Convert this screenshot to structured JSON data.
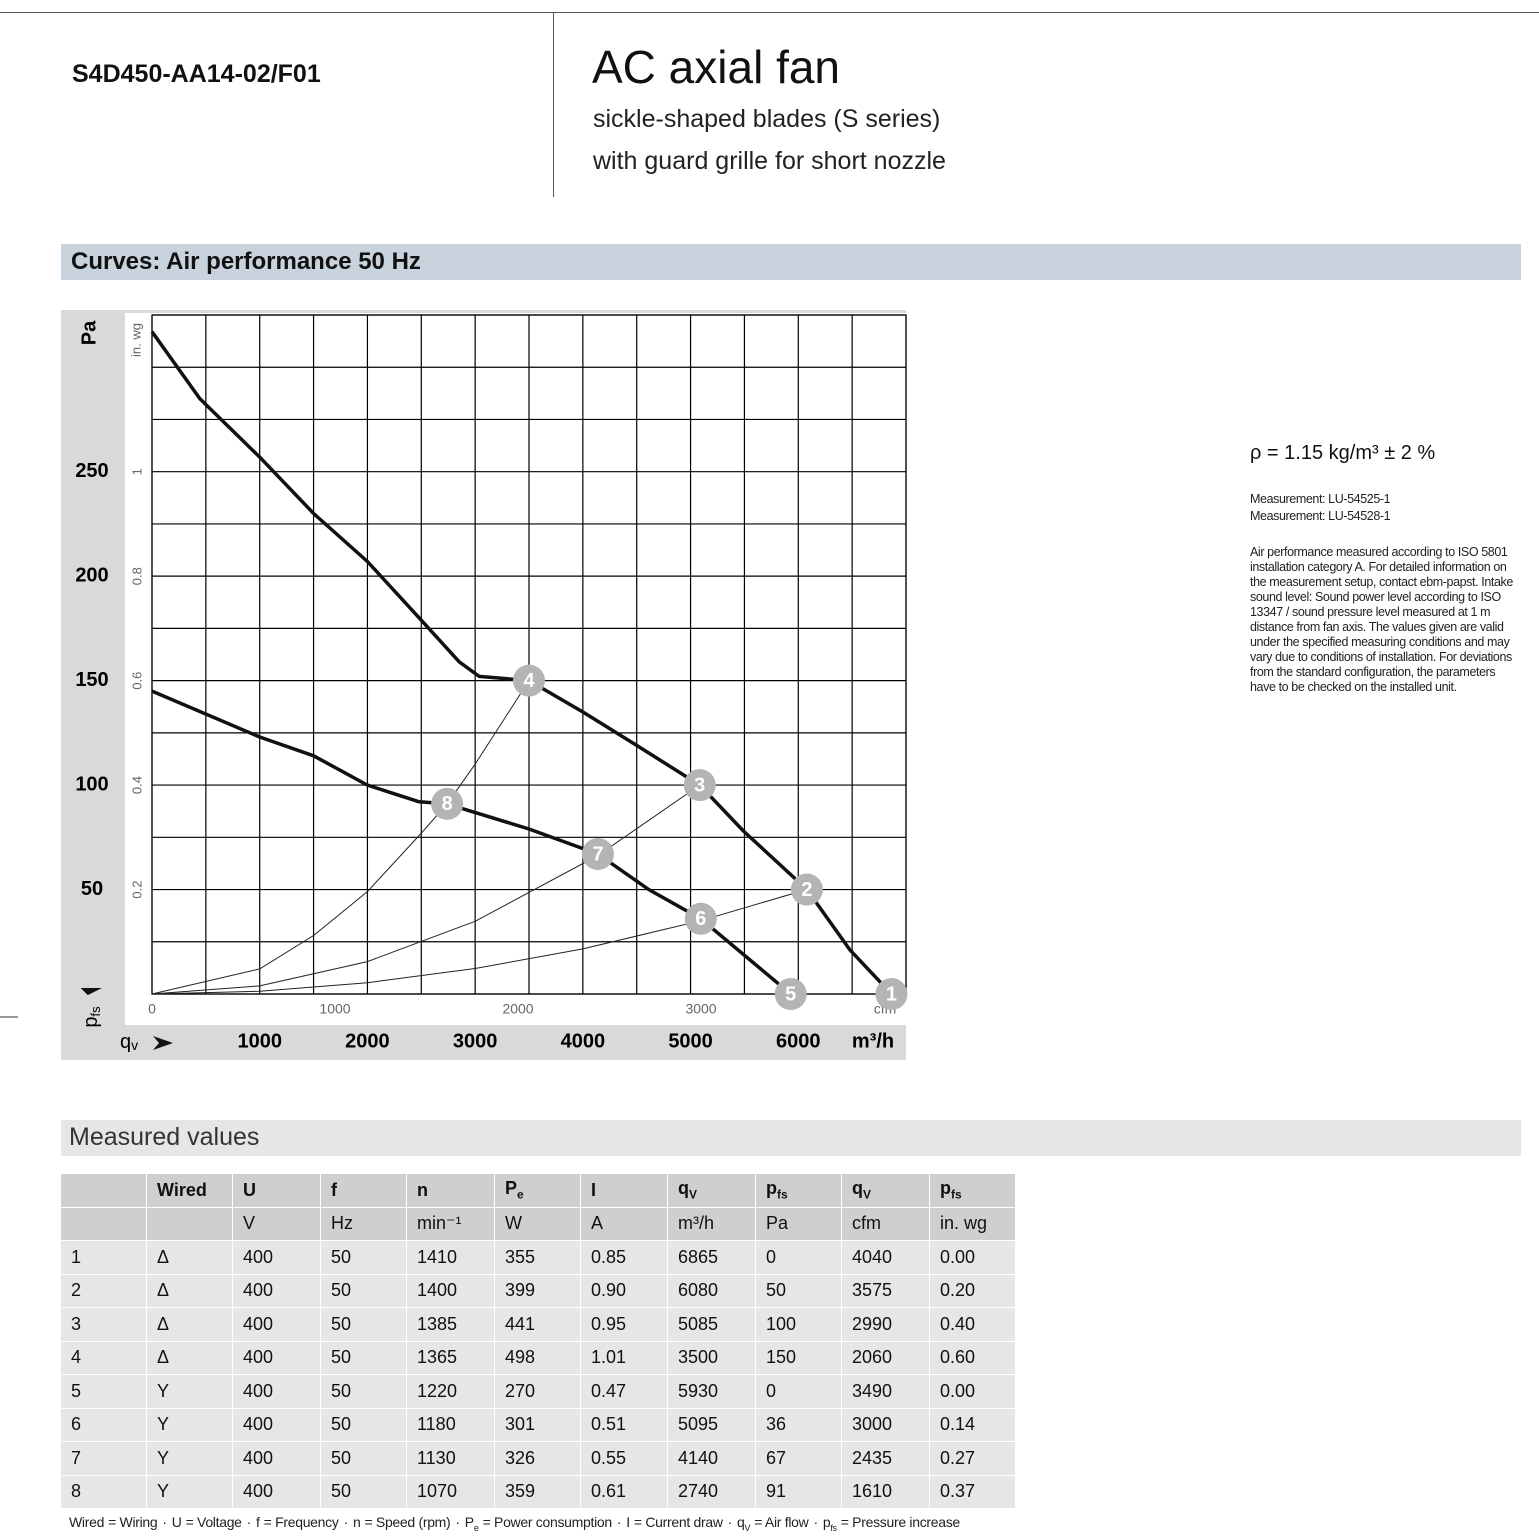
{
  "header": {
    "model": "S4D450-AA14-02/F01",
    "title": "AC axial fan",
    "subtitle": [
      "sickle-shaped blades (S series)",
      "with guard grille for short nozzle"
    ]
  },
  "curves_section": {
    "title": "Curves: Air performance 50 Hz"
  },
  "notes": {
    "density": "ρ = 1.15 kg/m³ ± 2 %",
    "measurements": [
      "Measurement: LU-54525-1",
      "Measurement: LU-54528-1"
    ],
    "description": "Air performance measured according to ISO 5801 installation category A. For detailed information on the measurement setup, contact ebm-papst. Intake sound level: Sound power level according to ISO 13347 / sound pressure level measured at 1 m distance from fan axis. The values given are valid under the specified measuring conditions and may vary due to conditions of installation. For deviations from the standard configuration, the parameters have to be checked on the installed unit."
  },
  "chart_data": {
    "type": "line",
    "ylabel": {
      "symbol": "p",
      "sub": "fs"
    },
    "ylabel_unit": "Pa",
    "y2label_unit": "in. wg",
    "xlabel": {
      "symbol": "q",
      "sub": "v"
    },
    "xlabel_unit": "m³/h",
    "x2label_unit": "cfm",
    "xlim": [
      0,
      7000
    ],
    "ylim": [
      0,
      325
    ],
    "x2lim": [
      0,
      4120
    ],
    "y2lim": [
      0,
      1.3
    ],
    "xticks": [
      1000,
      2000,
      3000,
      4000,
      5000,
      6000
    ],
    "yticks": [
      50,
      100,
      150,
      200,
      250
    ],
    "x2ticks": [
      0,
      1000,
      2000,
      3000
    ],
    "y2ticks": [
      0.2,
      0.4,
      0.6,
      0.8,
      1
    ],
    "xgrid": [
      0,
      500,
      1000,
      1500,
      2000,
      2500,
      3000,
      3500,
      4000,
      4500,
      5000,
      5500,
      6000,
      6500,
      7000
    ],
    "ygrid": [
      0,
      25,
      50,
      75,
      100,
      125,
      150,
      175,
      200,
      225,
      250,
      275,
      300,
      325
    ],
    "series": [
      {
        "color": "#111111",
        "line_width": 3.5,
        "x": [
          0,
          444,
          1000,
          1500,
          2000,
          2481,
          2852,
          3037,
          3500,
          4000,
          4500,
          5085,
          5490,
          6080,
          6481,
          6865
        ],
        "values": [
          317,
          285,
          257,
          230,
          207,
          180,
          159,
          152,
          150,
          135,
          119,
          100,
          78,
          50,
          21,
          0
        ]
      },
      {
        "color": "#111111",
        "line_width": 3.5,
        "x": [
          0,
          1000,
          1500,
          2000,
          2481,
          2740,
          3500,
          4140,
          4611,
          5095,
          5930
        ],
        "values": [
          145,
          123,
          114,
          100,
          92,
          91,
          79,
          67,
          50,
          36,
          0
        ]
      },
      {
        "color": "#222222",
        "line_width": 1,
        "x": [
          0,
          1000,
          1500,
          2000,
          2500,
          2740,
          3000,
          3500
        ],
        "values": [
          0,
          12,
          28,
          49,
          77,
          91,
          110,
          150
        ]
      },
      {
        "color": "#222222",
        "line_width": 1,
        "x": [
          0,
          1000,
          2000,
          3000,
          4140,
          5085
        ],
        "values": [
          0,
          3.9,
          15.5,
          34.8,
          66.3,
          100
        ]
      },
      {
        "color": "#222222",
        "line_width": 1,
        "x": [
          0,
          1000,
          2000,
          3000,
          4000,
          5095,
          6080
        ],
        "values": [
          0,
          1.35,
          5.4,
          12.2,
          21.6,
          35.1,
          50
        ]
      }
    ],
    "markers": [
      {
        "label": "1",
        "x": 6865,
        "y": 0
      },
      {
        "label": "2",
        "x": 6080,
        "y": 50
      },
      {
        "label": "3",
        "x": 5085,
        "y": 100
      },
      {
        "label": "4",
        "x": 3500,
        "y": 150
      },
      {
        "label": "5",
        "x": 5930,
        "y": 0
      },
      {
        "label": "6",
        "x": 5095,
        "y": 36
      },
      {
        "label": "7",
        "x": 4140,
        "y": 67
      },
      {
        "label": "8",
        "x": 2740,
        "y": 91
      }
    ],
    "marker_color": "#b4b4b4"
  },
  "measured_section": {
    "title": "Measured values"
  },
  "table": {
    "columns": [
      {
        "symbol": "Wired"
      },
      {
        "symbol": "U",
        "unit": "V"
      },
      {
        "symbol": "f",
        "unit": "Hz"
      },
      {
        "symbol": "n",
        "unit": "min⁻¹"
      },
      {
        "symbol": "P",
        "sub": "e",
        "unit": "W"
      },
      {
        "symbol": "I",
        "unit": "A"
      },
      {
        "symbol": "q",
        "sub": "V",
        "unit": "m³/h"
      },
      {
        "symbol": "p",
        "sub": "fs",
        "unit": "Pa"
      },
      {
        "symbol": "q",
        "sub": "V",
        "unit": "cfm"
      },
      {
        "symbol": "p",
        "sub": "fs",
        "unit": "in. wg"
      }
    ],
    "rows": [
      [
        "1",
        "Δ",
        "400",
        "50",
        "1410",
        "355",
        "0.85",
        "6865",
        "0",
        "4040",
        "0.00"
      ],
      [
        "2",
        "Δ",
        "400",
        "50",
        "1400",
        "399",
        "0.90",
        "6080",
        "50",
        "3575",
        "0.20"
      ],
      [
        "3",
        "Δ",
        "400",
        "50",
        "1385",
        "441",
        "0.95",
        "5085",
        "100",
        "2990",
        "0.40"
      ],
      [
        "4",
        "Δ",
        "400",
        "50",
        "1365",
        "498",
        "1.01",
        "3500",
        "150",
        "2060",
        "0.60"
      ],
      [
        "5",
        "Y",
        "400",
        "50",
        "1220",
        "270",
        "0.47",
        "5930",
        "0",
        "3490",
        "0.00"
      ],
      [
        "6",
        "Y",
        "400",
        "50",
        "1180",
        "301",
        "0.51",
        "5095",
        "36",
        "3000",
        "0.14"
      ],
      [
        "7",
        "Y",
        "400",
        "50",
        "1130",
        "326",
        "0.55",
        "4140",
        "67",
        "2435",
        "0.27"
      ],
      [
        "8",
        "Y",
        "400",
        "50",
        "1070",
        "359",
        "0.61",
        "2740",
        "91",
        "1610",
        "0.37"
      ]
    ]
  },
  "footnote": {
    "separator": "·",
    "items": [
      {
        "symbol": "Wired",
        "text": "= Wiring"
      },
      {
        "symbol": "U",
        "text": "= Voltage"
      },
      {
        "symbol": "f",
        "text": "= Frequency"
      },
      {
        "symbol": "n",
        "text": "= Speed (rpm)"
      },
      {
        "symbol": "P",
        "sub": "e",
        "text": "= Power consumption"
      },
      {
        "symbol": "I",
        "text": "= Current draw"
      },
      {
        "symbol": "q",
        "sub": "V",
        "text": "= Air flow"
      },
      {
        "symbol": "p",
        "sub": "fs",
        "text": "= Pressure increase"
      }
    ]
  }
}
